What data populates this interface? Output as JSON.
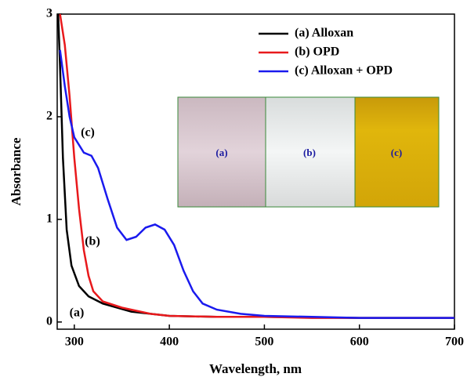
{
  "chart_data": {
    "type": "line",
    "x_label": "Wavelength, nm",
    "y_label": "Absorbance",
    "xlim": [
      282,
      700
    ],
    "ylim": [
      -0.07,
      3
    ],
    "xticks": [
      300,
      400,
      500,
      600,
      700
    ],
    "yticks": [
      0,
      1,
      2,
      3
    ],
    "series": [
      {
        "name": "(a) Alloxan",
        "color": "#000000",
        "x": [
          283,
          285,
          288,
          292,
          297,
          305,
          315,
          330,
          360,
          400,
          450,
          500,
          600,
          700
        ],
        "values": [
          3,
          2.5,
          1.6,
          0.9,
          0.55,
          0.35,
          0.25,
          0.18,
          0.1,
          0.06,
          0.05,
          0.05,
          0.04,
          0.04
        ]
      },
      {
        "name": "(b) OPD",
        "color": "#e8191c",
        "x": [
          285,
          290,
          295,
          300,
          305,
          310,
          315,
          320,
          330,
          350,
          380,
          400,
          450,
          500,
          550,
          700
        ],
        "values": [
          3,
          2.7,
          2.2,
          1.6,
          1.1,
          0.7,
          0.45,
          0.3,
          0.2,
          0.14,
          0.08,
          0.06,
          0.05,
          0.05,
          0.04,
          0.04
        ]
      },
      {
        "name": "(c) Alloxan + OPD",
        "color": "#1a1aee",
        "x": [
          285,
          290,
          295,
          300,
          310,
          318,
          325,
          335,
          345,
          355,
          365,
          375,
          385,
          395,
          405,
          415,
          425,
          435,
          450,
          475,
          500,
          550,
          600,
          700
        ],
        "values": [
          2.65,
          2.3,
          2.0,
          1.8,
          1.65,
          1.62,
          1.5,
          1.2,
          0.92,
          0.8,
          0.83,
          0.92,
          0.95,
          0.9,
          0.75,
          0.5,
          0.3,
          0.18,
          0.12,
          0.08,
          0.06,
          0.05,
          0.04,
          0.04
        ]
      }
    ],
    "annotations": [
      "(c)",
      "(b)",
      "(a)"
    ],
    "inset_labels": [
      "(a)",
      "(b)",
      "(c)"
    ]
  }
}
